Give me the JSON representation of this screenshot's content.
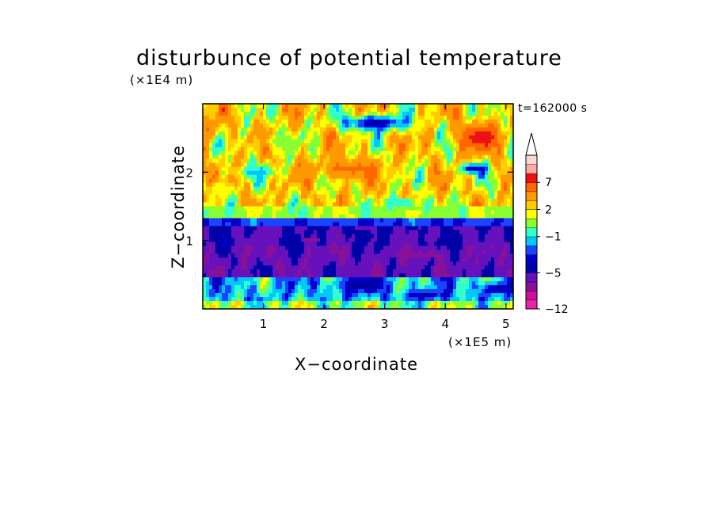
{
  "chart_data": {
    "type": "heatmap",
    "title": "disturbunce of potential temperature",
    "annotation": "t=162000 s",
    "xlabel": "X−coordinate",
    "ylabel": "Z−coordinate",
    "x_multiplier": "(×1E5 m)",
    "y_multiplier": "(×1E4 m)",
    "x_ticks": [
      "1",
      "2",
      "3",
      "4",
      "5"
    ],
    "y_ticks": [
      "1",
      "2"
    ],
    "xlim": [
      0,
      5.12
    ],
    "ylim": [
      0,
      3.0
    ],
    "colorbar": {
      "tick_labels": [
        "7",
        "2",
        "−1",
        "−5",
        "−12"
      ],
      "tick_values": [
        7,
        2,
        -1,
        -5,
        -12
      ],
      "extend": "max",
      "levels": [
        -12,
        -10,
        -8,
        -6,
        -5,
        -4,
        -3,
        -2,
        -1,
        0,
        1,
        2,
        3,
        5,
        7,
        9,
        11
      ],
      "colors": [
        "#ee22aa",
        "#cc1199",
        "#881199",
        "#6611bb",
        "#0000a8",
        "#0000cc",
        "#1a44ff",
        "#00c8ff",
        "#33ffcc",
        "#88ff33",
        "#ffff00",
        "#ffcc00",
        "#ff9900",
        "#ff6600",
        "#ee1111",
        "#ffaaaa",
        "#ffd5d5"
      ]
    },
    "bands": [
      {
        "z": [
          0.0,
          0.12
        ],
        "value": 0.3
      },
      {
        "z": [
          0.12,
          0.45
        ],
        "value": -1.4
      },
      {
        "z": [
          0.45,
          0.95
        ],
        "value": -5.5
      },
      {
        "z": [
          0.95,
          1.2
        ],
        "value": -5.0
      },
      {
        "z": [
          1.2,
          1.35
        ],
        "value": -2.8
      },
      {
        "z": [
          1.35,
          1.5
        ],
        "value": 0.6
      },
      {
        "z": [
          1.5,
          3.0
        ],
        "value": 2.2
      }
    ],
    "features": [
      {
        "x": 2.85,
        "z": 2.72,
        "rx": 0.55,
        "rz": 0.12,
        "value": -4.3
      },
      {
        "x": 4.45,
        "z": 2.05,
        "rx": 0.22,
        "rz": 0.08,
        "value": -4.2
      },
      {
        "x": 4.55,
        "z": 2.5,
        "rx": 0.35,
        "rz": 0.2,
        "value": 7.8
      },
      {
        "x": 2.4,
        "z": 2.05,
        "rx": 0.55,
        "rz": 0.15,
        "value": 5.5
      },
      {
        "x": 0.9,
        "z": 2.0,
        "rx": 0.35,
        "rz": 0.09,
        "value": -1.3
      },
      {
        "x": 1.3,
        "z": 2.45,
        "rx": 0.3,
        "rz": 0.1,
        "value": 0.5
      },
      {
        "x": 0.1,
        "z": 2.65,
        "rx": 0.15,
        "rz": 0.18,
        "value": 5.2
      },
      {
        "x": 3.3,
        "z": 1.55,
        "rx": 0.35,
        "rz": 0.08,
        "value": -1.2
      },
      {
        "x": 0.25,
        "z": 1.75,
        "rx": 0.25,
        "rz": 0.1,
        "value": 1.2
      },
      {
        "x": 3.5,
        "z": 0.8,
        "rx": 0.4,
        "rz": 0.03,
        "value": -8.4
      },
      {
        "x": 1.75,
        "z": 1.0,
        "rx": 0.1,
        "rz": 0.03,
        "value": -8.2
      },
      {
        "x": 2.6,
        "z": 0.35,
        "rx": 0.4,
        "rz": 0.12,
        "value": -4.6
      },
      {
        "x": 3.7,
        "z": 0.2,
        "rx": 0.3,
        "rz": 0.07,
        "value": -4.2
      },
      {
        "x": 4.9,
        "z": 0.3,
        "rx": 0.3,
        "rz": 0.09,
        "value": -4.3
      }
    ]
  }
}
